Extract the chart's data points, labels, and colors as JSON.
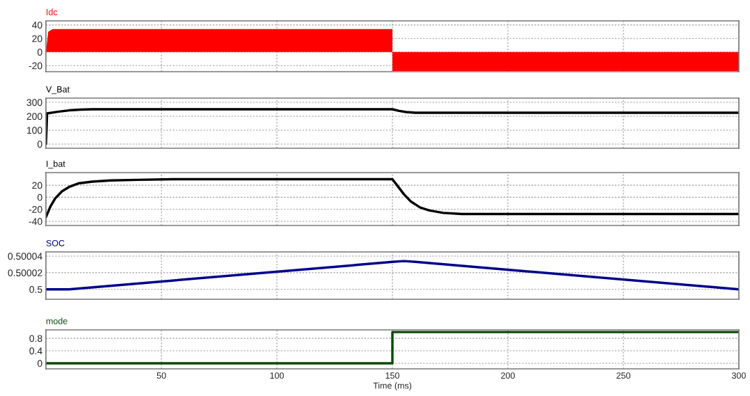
{
  "chart_data": [
    {
      "type": "area",
      "title": "Idc",
      "x": [
        0,
        1,
        3,
        150,
        150,
        300
      ],
      "series": [
        {
          "color": "#ff0000",
          "values": [
            0,
            30,
            34,
            34,
            -28,
            -28
          ]
        }
      ],
      "xlim": [
        0,
        300
      ],
      "xticks": [
        50,
        100,
        150,
        200,
        250,
        300
      ],
      "ylim": [
        -29,
        46
      ],
      "yticks": [
        -20,
        0,
        20,
        40
      ],
      "grid": true,
      "tick_labels": "y"
    },
    {
      "type": "line",
      "title": "V_Bat",
      "x": [
        0,
        0.5,
        5,
        10,
        15,
        20,
        150,
        153,
        156,
        160,
        300
      ],
      "series": [
        {
          "color": "#000000",
          "values": [
            0,
            220,
            232,
            242,
            248,
            250,
            250,
            238,
            230,
            225,
            225
          ]
        }
      ],
      "xlim": [
        0,
        300
      ],
      "xticks": [
        50,
        100,
        150,
        200,
        250,
        300
      ],
      "ylim": [
        -30,
        330
      ],
      "yticks": [
        0,
        100,
        200,
        300
      ],
      "grid": true,
      "tick_labels": "y"
    },
    {
      "type": "line",
      "title": "I_bat",
      "x": [
        0,
        2,
        4,
        7,
        10,
        14,
        20,
        28,
        40,
        55,
        150,
        152,
        155,
        158,
        162,
        166,
        172,
        180,
        300
      ],
      "series": [
        {
          "color": "#000000",
          "values": [
            -33,
            -15,
            -2,
            10,
            17,
            23,
            26,
            28,
            29,
            30,
            30,
            20,
            5,
            -7,
            -17,
            -22,
            -26,
            -28,
            -28
          ]
        }
      ],
      "xlim": [
        0,
        300
      ],
      "xticks": [
        50,
        100,
        150,
        200,
        250,
        300
      ],
      "ylim": [
        -47,
        41
      ],
      "yticks": [
        -40,
        -20,
        0,
        20
      ],
      "grid": true,
      "tick_labels": "y"
    },
    {
      "type": "line",
      "title": "SOC",
      "x": [
        0,
        10,
        150,
        155,
        160,
        300
      ],
      "series": [
        {
          "color": "#00008b",
          "values": [
            0.5,
            0.5,
            0.500033,
            0.500034,
            0.500033,
            0.5
          ]
        }
      ],
      "xlim": [
        0,
        300
      ],
      "xticks": [
        50,
        100,
        150,
        200,
        250,
        300
      ],
      "ylim": [
        0.499988,
        0.500045
      ],
      "yticks": [
        0.5,
        0.50002,
        0.50004
      ],
      "grid": true,
      "tick_labels": "y"
    },
    {
      "type": "line",
      "title": "mode",
      "xlabel": "Time (ms)",
      "x": [
        0,
        150,
        150,
        300
      ],
      "series": [
        {
          "color": "#0b4a0b",
          "values": [
            0,
            0,
            1,
            1
          ]
        }
      ],
      "xlim": [
        0,
        300
      ],
      "xticks": [
        50,
        100,
        150,
        200,
        250,
        300
      ],
      "ylim": [
        -0.18,
        1.07
      ],
      "yticks": [
        0,
        0.4,
        0.8
      ],
      "grid": true
    }
  ]
}
